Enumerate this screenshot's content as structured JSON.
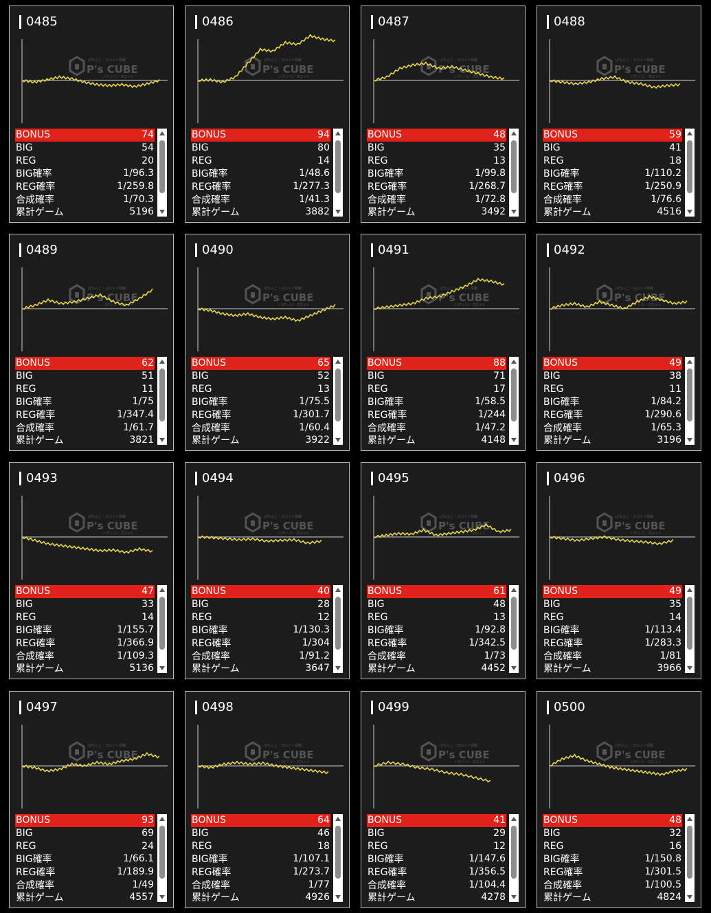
{
  "watermark": {
    "brand": "P's CUBE",
    "sub": "ぱちんこ・スロット情報",
    "tagline": "パチンコ・スロット"
  },
  "colors": {
    "bonus_bg": "#e0221a",
    "line": "#ead64c",
    "card_bg": "#1c1c1c",
    "border": "#bdbdbd"
  },
  "stat_labels": {
    "bonus": "BONUS",
    "big": "BIG",
    "reg": "REG",
    "big_rate": "BIG確率",
    "reg_rate": "REG確率",
    "combined_rate": "合成確率",
    "total_games": "累計ゲーム"
  },
  "machines": [
    {
      "id": "0485",
      "bonus": "74",
      "big": "54",
      "reg": "20",
      "big_rate": "1/96.3",
      "reg_rate": "1/259.8",
      "combined_rate": "1/70.3",
      "total_games": "5196",
      "graph": [
        0,
        -0.05,
        0.02,
        0.1,
        0.05,
        -0.05,
        -0.12,
        -0.15,
        -0.12,
        -0.18,
        -0.1,
        0
      ]
    },
    {
      "id": "0486",
      "bonus": "94",
      "big": "80",
      "reg": "14",
      "big_rate": "1/48.6",
      "reg_rate": "1/277.3",
      "combined_rate": "1/41.3",
      "total_games": "3882",
      "graph": [
        0,
        0.02,
        -0.05,
        0.1,
        0.5,
        0.9,
        0.85,
        1.1,
        1.05,
        1.3,
        1.2,
        1.15
      ]
    },
    {
      "id": "0487",
      "bonus": "48",
      "big": "35",
      "reg": "13",
      "big_rate": "1/99.8",
      "reg_rate": "1/268.7",
      "combined_rate": "1/72.8",
      "total_games": "3492",
      "graph": [
        0,
        0.1,
        0.35,
        0.45,
        0.5,
        0.35,
        0.4,
        0.3,
        0.2,
        0.1,
        0.05
      ]
    },
    {
      "id": "0488",
      "bonus": "59",
      "big": "41",
      "reg": "18",
      "big_rate": "1/110.2",
      "reg_rate": "1/250.9",
      "combined_rate": "1/76.6",
      "total_games": "4516",
      "graph": [
        0,
        -0.05,
        -0.1,
        -0.05,
        0.05,
        0.1,
        -0.05,
        -0.1,
        -0.2,
        -0.15,
        -0.12
      ]
    },
    {
      "id": "0489",
      "bonus": "62",
      "big": "51",
      "reg": "11",
      "big_rate": "1/75",
      "reg_rate": "1/347.4",
      "combined_rate": "1/61.7",
      "total_games": "3821",
      "graph": [
        0,
        0.1,
        0.25,
        0.15,
        0.2,
        0.3,
        0.4,
        0.2,
        0.1,
        0.3,
        0.55
      ]
    },
    {
      "id": "0490",
      "bonus": "65",
      "big": "52",
      "reg": "13",
      "big_rate": "1/75.5",
      "reg_rate": "1/301.7",
      "combined_rate": "1/60.4",
      "total_games": "3922",
      "graph": [
        0,
        -0.05,
        -0.15,
        -0.2,
        -0.15,
        -0.25,
        -0.3,
        -0.25,
        -0.35,
        -0.2,
        -0.05,
        0.1
      ]
    },
    {
      "id": "0491",
      "bonus": "88",
      "big": "71",
      "reg": "17",
      "big_rate": "1/58.5",
      "reg_rate": "1/244",
      "combined_rate": "1/47.2",
      "total_games": "4148",
      "graph": [
        0,
        0.05,
        0.1,
        0.15,
        0.3,
        0.35,
        0.5,
        0.65,
        0.85,
        0.8,
        0.7
      ]
    },
    {
      "id": "0492",
      "bonus": "49",
      "big": "38",
      "reg": "11",
      "big_rate": "1/84.2",
      "reg_rate": "1/290.6",
      "combined_rate": "1/65.3",
      "total_games": "3196",
      "graph": [
        0,
        0.1,
        0.15,
        0.05,
        0.2,
        0.1,
        0,
        0.2,
        0.35,
        0.25,
        0.15,
        0.2
      ]
    },
    {
      "id": "0493",
      "bonus": "47",
      "big": "33",
      "reg": "14",
      "big_rate": "1/155.7",
      "reg_rate": "1/366.9",
      "combined_rate": "1/109.3",
      "total_games": "5136",
      "graph": [
        0,
        -0.1,
        -0.2,
        -0.25,
        -0.3,
        -0.35,
        -0.4,
        -0.38,
        -0.45,
        -0.35,
        -0.42
      ]
    },
    {
      "id": "0494",
      "bonus": "40",
      "big": "28",
      "reg": "12",
      "big_rate": "1/130.3",
      "reg_rate": "1/304",
      "combined_rate": "1/91.2",
      "total_games": "3647",
      "graph": [
        0,
        -0.02,
        -0.05,
        -0.08,
        -0.06,
        -0.12,
        -0.1,
        -0.08,
        -0.18,
        -0.12
      ]
    },
    {
      "id": "0495",
      "bonus": "61",
      "big": "48",
      "reg": "13",
      "big_rate": "1/92.8",
      "reg_rate": "1/342.5",
      "combined_rate": "1/73",
      "total_games": "4452",
      "graph": [
        0,
        0.05,
        0.1,
        0.08,
        0.2,
        0.05,
        0.1,
        0.15,
        0.2,
        0.35,
        0.15,
        0.2
      ]
    },
    {
      "id": "0496",
      "bonus": "49",
      "big": "35",
      "reg": "14",
      "big_rate": "1/113.4",
      "reg_rate": "1/283.3",
      "combined_rate": "1/81",
      "total_games": "3966",
      "graph": [
        0,
        -0.05,
        -0.1,
        -0.05,
        0,
        -0.08,
        -0.12,
        -0.15,
        -0.2,
        -0.1
      ]
    },
    {
      "id": "0497",
      "bonus": "93",
      "big": "69",
      "reg": "24",
      "big_rate": "1/66.1",
      "reg_rate": "1/189.9",
      "combined_rate": "1/49",
      "total_games": "4557",
      "graph": [
        0,
        -0.05,
        -0.15,
        -0.1,
        0.05,
        0,
        0.1,
        0.05,
        0.15,
        0.2,
        0.35,
        0.25
      ]
    },
    {
      "id": "0498",
      "bonus": "64",
      "big": "46",
      "reg": "18",
      "big_rate": "1/107.1",
      "reg_rate": "1/273.7",
      "combined_rate": "1/77",
      "total_games": "4926",
      "graph": [
        0,
        -0.05,
        0.05,
        0.1,
        0.05,
        0.08,
        0,
        -0.05,
        -0.1,
        -0.15,
        -0.2
      ]
    },
    {
      "id": "0499",
      "bonus": "41",
      "big": "29",
      "reg": "12",
      "big_rate": "1/147.6",
      "reg_rate": "1/356.5",
      "combined_rate": "1/104.4",
      "total_games": "4278",
      "graph": [
        0,
        0.1,
        0.05,
        -0.05,
        -0.1,
        -0.2,
        -0.25,
        -0.35,
        -0.45
      ]
    },
    {
      "id": "0500",
      "bonus": "48",
      "big": "32",
      "reg": "16",
      "big_rate": "1/150.8",
      "reg_rate": "1/301.5",
      "combined_rate": "1/100.5",
      "total_games": "4824",
      "graph": [
        0,
        0.2,
        0.3,
        0.15,
        0.05,
        -0.05,
        -0.1,
        -0.15,
        -0.2,
        -0.25,
        -0.15,
        -0.1
      ]
    }
  ]
}
